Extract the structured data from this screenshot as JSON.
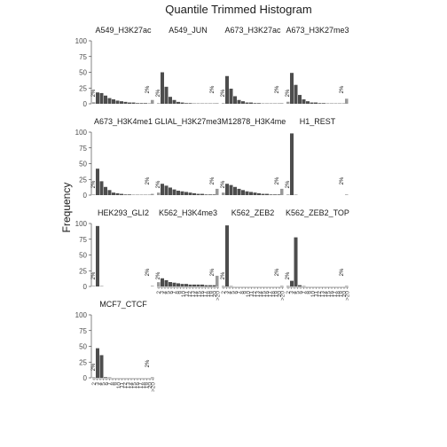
{
  "chart_data": {
    "type": "bar",
    "title": "Quantile Trimmed Histogram",
    "xlabel": "",
    "ylabel": "Frequency",
    "ylim": [
      0,
      100
    ],
    "yticks": [
      "0",
      "25",
      "50",
      "75",
      "100"
    ],
    "pct_label": "2%",
    "x_tick_labels": [
      "2",
      "3",
      "4",
      "5",
      "6",
      "7",
      "8",
      "9",
      "10",
      "11",
      "12",
      "13",
      "14",
      "15",
      "16",
      "17",
      "18",
      "19",
      "20",
      ">20"
    ],
    "bar_colors": {
      "main": "#4d4d4d",
      "tail": "#999999"
    },
    "grid": false,
    "legend": "none",
    "panels": [
      {
        "name": "A549_H3K27ac",
        "main": [
          18,
          17,
          13,
          9,
          7,
          5,
          4,
          3,
          2,
          2,
          1,
          1,
          1,
          0.5
        ],
        "tail": 6
      },
      {
        "name": "A549_JUN",
        "main": [
          50,
          27,
          11,
          6,
          3,
          2,
          1,
          1,
          0.5,
          0.5,
          0.5,
          0.5,
          0.5,
          0.5
        ],
        "tail": 1
      },
      {
        "name": "A673_H3K27ac",
        "main": [
          44,
          24,
          12,
          6,
          4,
          2,
          2,
          1,
          1,
          0.5,
          0.5,
          0.5,
          0.5,
          0.5
        ],
        "tail": 1
      },
      {
        "name": "A673_H3K27me3",
        "main": [
          49,
          30,
          14,
          7,
          4,
          2,
          2,
          1,
          1,
          0.5,
          0.5,
          0.5,
          0.5,
          0.5
        ],
        "tail": 8
      },
      {
        "name": "A673_H3K4me1",
        "main": [
          42,
          22,
          13,
          8,
          4,
          3,
          2,
          1,
          1,
          0.5,
          0.5,
          0.5,
          0.5,
          0.5
        ],
        "tail": 2
      },
      {
        "name": "GLIAL_H3K27me3",
        "main": [
          18,
          15,
          12,
          9,
          7,
          6,
          5,
          4,
          3,
          2,
          2,
          1,
          1,
          1
        ],
        "tail": 10
      },
      {
        "name": "GM12878_H3K4me3",
        "main": [
          18,
          16,
          13,
          10,
          8,
          6,
          5,
          4,
          3,
          2,
          2,
          1,
          1,
          1
        ],
        "tail": 10
      },
      {
        "name": "H1_REST",
        "main": [
          98,
          0.5,
          0,
          0,
          0,
          0,
          0,
          0,
          0,
          0,
          0,
          0,
          0,
          0
        ],
        "tail": 1
      },
      {
        "name": "HEK293_GLI2",
        "main": [
          96,
          0.5,
          0,
          0,
          0,
          0,
          0,
          0,
          0,
          0,
          0,
          0,
          0,
          0
        ],
        "tail": 1
      },
      {
        "name": "K562_H3K4me3",
        "main": [
          13,
          10,
          7,
          6,
          5,
          4,
          4,
          3,
          3,
          3,
          3,
          2,
          2,
          2
        ],
        "tail": 17
      },
      {
        "name": "K562_ZEB2",
        "main": [
          97,
          0.5,
          0,
          0,
          0,
          0,
          0,
          0,
          0,
          0,
          0,
          0,
          0,
          0
        ],
        "tail": 1
      },
      {
        "name": "K562_ZEB2_TOP",
        "main": [
          9,
          78,
          2,
          0.5,
          0,
          0,
          0,
          0,
          0,
          0,
          0,
          0,
          0,
          0
        ],
        "tail": 1
      },
      {
        "name": "MCF7_CTCF",
        "main": [
          47,
          36,
          1,
          0.5,
          0,
          0,
          0,
          0,
          0,
          0,
          0,
          0,
          0,
          0
        ],
        "tail": 1
      }
    ]
  }
}
